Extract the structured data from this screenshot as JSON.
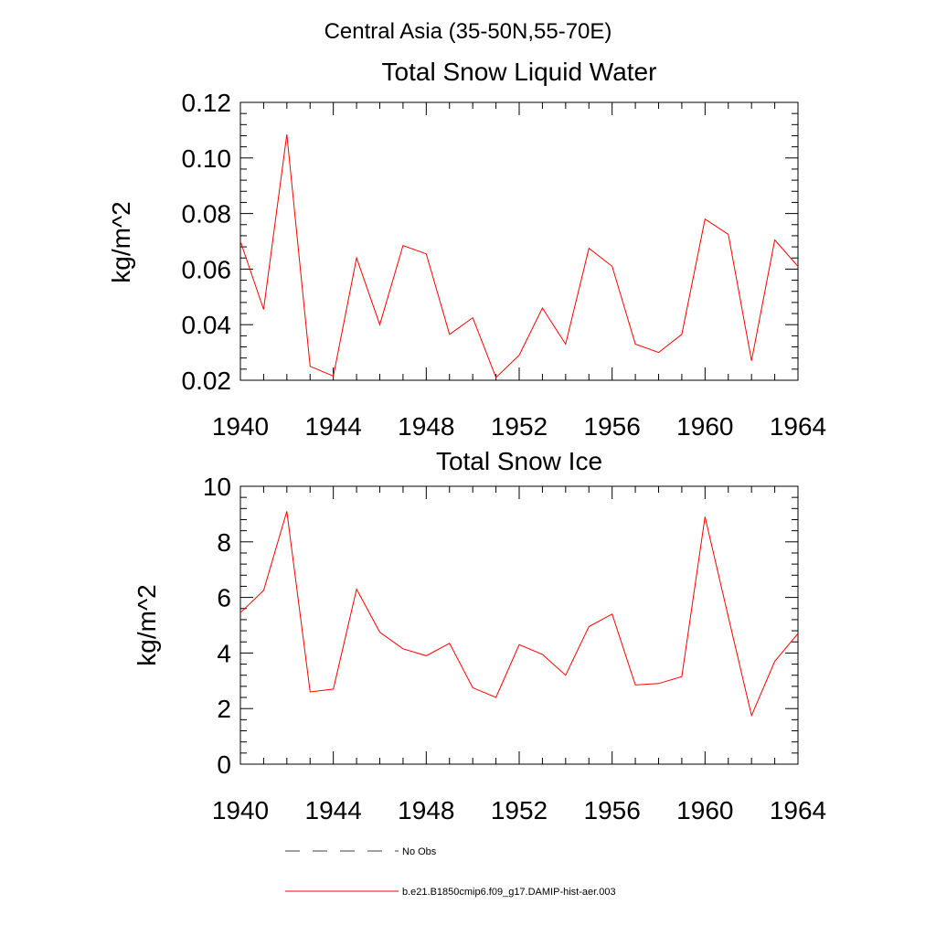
{
  "title": "Central Asia (35-50N,55-70E)",
  "legend": [
    {
      "label": "No Obs",
      "color": "#3a3a6a",
      "style": "dashed"
    },
    {
      "label": "b.e21.B1850cmip6.f09_g17.DAMIP-hist-aer.003",
      "color": "#ff0000",
      "style": "solid"
    }
  ],
  "chart_data": [
    {
      "type": "line",
      "title": "Total Snow Liquid Water",
      "xlabel": "",
      "ylabel": "kg/m^2",
      "xlim": [
        1940,
        1964
      ],
      "ylim": [
        0.02,
        0.12
      ],
      "xticks": [
        "1940",
        "1944",
        "1948",
        "1952",
        "1956",
        "1960",
        "1964"
      ],
      "yticks": [
        "0.02",
        "0.04",
        "0.06",
        "0.08",
        "0.10",
        "0.12"
      ],
      "grid": false,
      "x": [
        1940,
        1941,
        1942,
        1943,
        1944,
        1945,
        1946,
        1947,
        1948,
        1949,
        1950,
        1951,
        1952,
        1953,
        1954,
        1955,
        1956,
        1957,
        1958,
        1959,
        1960,
        1961,
        1962,
        1963,
        1964
      ],
      "series": [
        {
          "name": "b.e21.B1850cmip6.f09_g17.DAMIP-hist-aer.003",
          "color": "#ff0000",
          "values": [
            0.07,
            0.0455,
            0.1085,
            0.025,
            0.0215,
            0.064,
            0.04,
            0.0685,
            0.0655,
            0.0365,
            0.0425,
            0.021,
            0.029,
            0.046,
            0.033,
            0.0675,
            0.061,
            0.033,
            0.03,
            0.0365,
            0.078,
            0.0725,
            0.027,
            0.0705,
            0.061
          ]
        }
      ]
    },
    {
      "type": "line",
      "title": "Total Snow Ice",
      "xlabel": "",
      "ylabel": "kg/m^2",
      "xlim": [
        1940,
        1964
      ],
      "ylim": [
        0,
        10
      ],
      "xticks": [
        "1940",
        "1944",
        "1948",
        "1952",
        "1956",
        "1960",
        "1964"
      ],
      "yticks": [
        "0",
        "2",
        "4",
        "6",
        "8",
        "10"
      ],
      "grid": false,
      "x": [
        1940,
        1941,
        1942,
        1943,
        1944,
        1945,
        1946,
        1947,
        1948,
        1949,
        1950,
        1951,
        1952,
        1953,
        1954,
        1955,
        1956,
        1957,
        1958,
        1959,
        1960,
        1961,
        1962,
        1963,
        1964
      ],
      "series": [
        {
          "name": "b.e21.B1850cmip6.f09_g17.DAMIP-hist-aer.003",
          "color": "#ff0000",
          "values": [
            5.45,
            6.25,
            9.1,
            2.6,
            2.7,
            6.3,
            4.75,
            4.15,
            3.9,
            4.35,
            2.75,
            2.4,
            4.3,
            3.95,
            3.2,
            4.95,
            5.4,
            2.85,
            2.9,
            3.15,
            8.9,
            5.3,
            1.75,
            3.7,
            4.7
          ]
        }
      ]
    }
  ]
}
